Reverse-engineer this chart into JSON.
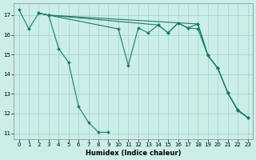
{
  "xlabel": "Humidex (Indice chaleur)",
  "bg_color": "#cceee8",
  "grid_color": "#aad4ce",
  "line_color": "#1a7a6e",
  "xlim": [
    -0.5,
    23.5
  ],
  "ylim": [
    10.7,
    17.6
  ],
  "yticks": [
    11,
    12,
    13,
    14,
    15,
    16,
    17
  ],
  "xticks": [
    0,
    1,
    2,
    3,
    4,
    5,
    6,
    7,
    8,
    9,
    10,
    11,
    12,
    13,
    14,
    15,
    16,
    17,
    18,
    19,
    20,
    21,
    22,
    23
  ],
  "lines": [
    [
      [
        0,
        17.3
      ],
      [
        1,
        16.3
      ],
      [
        2,
        17.1
      ],
      [
        3,
        17.0
      ],
      [
        4,
        15.3
      ],
      [
        5,
        14.6
      ],
      [
        6,
        12.35
      ],
      [
        7,
        11.55
      ],
      [
        8,
        11.05
      ],
      [
        9,
        11.05
      ]
    ],
    [
      [
        2,
        17.1
      ],
      [
        3,
        17.0
      ],
      [
        10,
        16.3
      ],
      [
        11,
        14.45
      ],
      [
        12,
        16.35
      ],
      [
        13,
        16.1
      ],
      [
        14,
        16.5
      ],
      [
        15,
        16.1
      ],
      [
        16,
        16.6
      ],
      [
        17,
        16.35
      ],
      [
        18,
        16.3
      ],
      [
        19,
        14.95
      ],
      [
        20,
        14.3
      ],
      [
        21,
        13.05
      ],
      [
        22,
        12.2
      ],
      [
        23,
        11.8
      ]
    ],
    [
      [
        2,
        17.1
      ],
      [
        3,
        17.0
      ],
      [
        18,
        16.55
      ],
      [
        19,
        14.95
      ],
      [
        20,
        14.3
      ],
      [
        21,
        13.05
      ],
      [
        22,
        12.15
      ],
      [
        23,
        11.8
      ]
    ],
    [
      [
        2,
        17.1
      ],
      [
        3,
        17.0
      ],
      [
        14,
        16.5
      ],
      [
        15,
        16.1
      ],
      [
        16,
        16.6
      ],
      [
        17,
        16.35
      ],
      [
        18,
        16.55
      ],
      [
        19,
        14.95
      ],
      [
        20,
        14.3
      ],
      [
        21,
        13.05
      ],
      [
        22,
        12.15
      ],
      [
        23,
        11.8
      ]
    ]
  ]
}
